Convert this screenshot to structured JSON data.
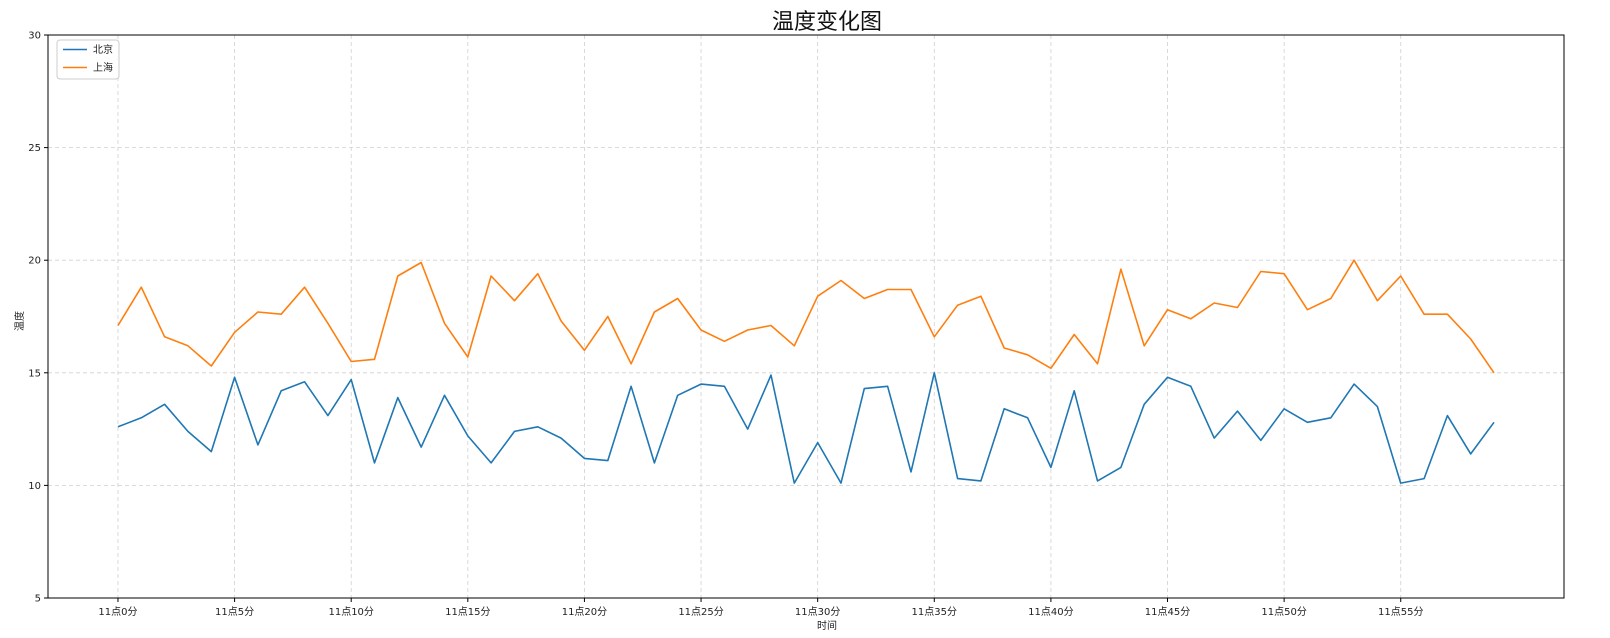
{
  "chart_data": {
    "type": "line",
    "title": "温度变化图",
    "xlabel": "时间",
    "ylabel": "温度",
    "ylim": [
      5,
      30
    ],
    "yticks": [
      5,
      10,
      15,
      20,
      25,
      30
    ],
    "xlim": [
      -3,
      62
    ],
    "xticks": [
      {
        "x": 0,
        "label": "11点0分"
      },
      {
        "x": 5,
        "label": "11点5分"
      },
      {
        "x": 10,
        "label": "11点10分"
      },
      {
        "x": 15,
        "label": "11点15分"
      },
      {
        "x": 20,
        "label": "11点20分"
      },
      {
        "x": 25,
        "label": "11点25分"
      },
      {
        "x": 30,
        "label": "11点30分"
      },
      {
        "x": 35,
        "label": "11点35分"
      },
      {
        "x": 40,
        "label": "11点40分"
      },
      {
        "x": 45,
        "label": "11点45分"
      },
      {
        "x": 50,
        "label": "11点50分"
      },
      {
        "x": 55,
        "label": "11点55分"
      }
    ],
    "grid": true,
    "legend_position": "top-left",
    "x": [
      0,
      1,
      2,
      3,
      4,
      5,
      6,
      7,
      8,
      9,
      10,
      11,
      12,
      13,
      14,
      15,
      16,
      17,
      18,
      19,
      20,
      21,
      22,
      23,
      24,
      25,
      26,
      27,
      28,
      29,
      30,
      31,
      32,
      33,
      34,
      35,
      36,
      37,
      38,
      39,
      40,
      41,
      42,
      43,
      44,
      45,
      46,
      47,
      48,
      49,
      50,
      51,
      52,
      53,
      54,
      55,
      56,
      57,
      58,
      59
    ],
    "series": [
      {
        "name": "北京",
        "color": "#1f77b4",
        "values": [
          12.6,
          13.0,
          13.6,
          12.4,
          11.5,
          14.8,
          11.8,
          14.2,
          14.6,
          13.1,
          14.7,
          11.0,
          13.9,
          11.7,
          14.0,
          12.2,
          11.0,
          12.4,
          12.6,
          12.1,
          11.2,
          11.1,
          14.4,
          11.0,
          14.0,
          14.5,
          14.4,
          12.5,
          14.9,
          10.1,
          11.9,
          10.1,
          14.3,
          14.4,
          10.6,
          15.0,
          10.3,
          10.2,
          13.4,
          13.0,
          10.8,
          14.2,
          10.2,
          10.8,
          13.6,
          14.8,
          14.4,
          12.1,
          13.3,
          12.0,
          13.4,
          12.8,
          13.0,
          14.5,
          13.5,
          10.1,
          10.3,
          13.1,
          11.4,
          12.8
        ]
      },
      {
        "name": "上海",
        "color": "#ff7f0e",
        "values": [
          17.1,
          18.8,
          16.6,
          16.2,
          15.3,
          16.8,
          17.7,
          17.6,
          18.8,
          17.2,
          15.5,
          15.6,
          19.3,
          19.9,
          17.2,
          15.7,
          19.3,
          18.2,
          19.4,
          17.3,
          16.0,
          17.5,
          15.4,
          17.7,
          18.3,
          16.9,
          16.4,
          16.9,
          17.1,
          16.2,
          18.4,
          19.1,
          18.3,
          18.7,
          18.7,
          16.6,
          18.0,
          18.4,
          16.1,
          15.8,
          15.2,
          16.7,
          15.4,
          19.6,
          16.2,
          17.8,
          17.4,
          18.1,
          17.9,
          19.5,
          19.4,
          17.8,
          18.3,
          20.0,
          18.2,
          19.3,
          17.6,
          17.6,
          16.5,
          15.0
        ]
      }
    ]
  }
}
